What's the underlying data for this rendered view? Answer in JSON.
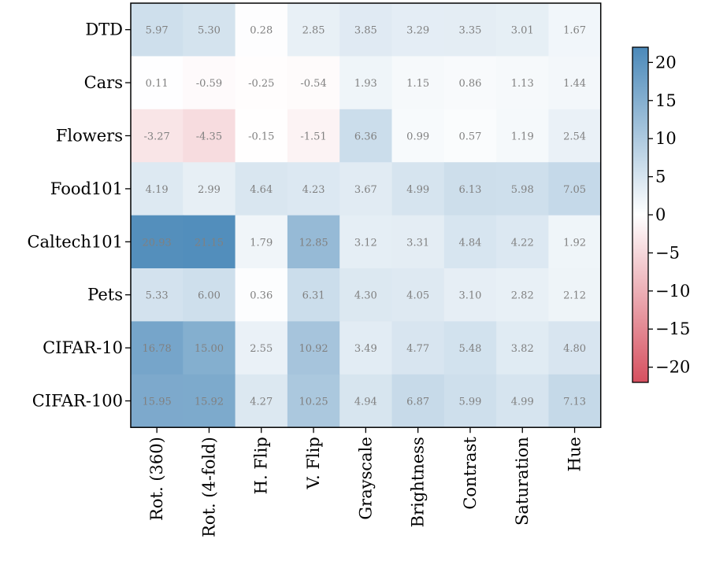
{
  "chart_data": {
    "type": "heatmap",
    "rows": [
      "DTD",
      "Cars",
      "Flowers",
      "Food101",
      "Caltech101",
      "Pets",
      "CIFAR-10",
      "CIFAR-100"
    ],
    "columns": [
      "Rot. (360)",
      "Rot. (4-fold)",
      "H. Flip",
      "V. Flip",
      "Grayscale",
      "Brightness",
      "Contrast",
      "Saturation",
      "Hue"
    ],
    "values": [
      [
        5.97,
        5.3,
        0.28,
        2.85,
        3.85,
        3.29,
        3.35,
        3.01,
        1.67
      ],
      [
        0.11,
        -0.59,
        -0.25,
        -0.54,
        1.93,
        1.15,
        0.86,
        1.13,
        1.44
      ],
      [
        -3.27,
        -4.35,
        -0.15,
        -1.51,
        6.36,
        0.99,
        0.57,
        1.19,
        2.54
      ],
      [
        4.19,
        2.99,
        4.64,
        4.23,
        3.67,
        4.99,
        6.13,
        5.98,
        7.05
      ],
      [
        20.93,
        21.15,
        1.79,
        12.85,
        3.12,
        3.31,
        4.84,
        4.22,
        1.92
      ],
      [
        5.33,
        6.0,
        0.36,
        6.31,
        4.3,
        4.05,
        3.1,
        2.82,
        2.12
      ],
      [
        16.78,
        15.0,
        2.55,
        10.92,
        3.49,
        4.77,
        5.48,
        3.82,
        4.8
      ],
      [
        15.95,
        15.92,
        4.27,
        10.25,
        4.94,
        6.87,
        5.99,
        4.99,
        7.13
      ]
    ],
    "cell_labels": [
      [
        "5.97",
        "5.30",
        "0.28",
        "2.85",
        "3.85",
        "3.29",
        "3.35",
        "3.01",
        "1.67"
      ],
      [
        "0.11",
        "-0.59",
        "-0.25",
        "-0.54",
        "1.93",
        "1.15",
        "0.86",
        "1.13",
        "1.44"
      ],
      [
        "-3.27",
        "-4.35",
        "-0.15",
        "-1.51",
        "6.36",
        "0.99",
        "0.57",
        "1.19",
        "2.54"
      ],
      [
        "4.19",
        "2.99",
        "4.64",
        "4.23",
        "3.67",
        "4.99",
        "6.13",
        "5.98",
        "7.05"
      ],
      [
        "20.93",
        "21.15",
        "1.79",
        "12.85",
        "3.12",
        "3.31",
        "4.84",
        "4.22",
        "1.92"
      ],
      [
        "5.33",
        "6.00",
        "0.36",
        "6.31",
        "4.30",
        "4.05",
        "3.10",
        "2.82",
        "2.12"
      ],
      [
        "16.78",
        "15.00",
        "2.55",
        "10.92",
        "3.49",
        "4.77",
        "5.48",
        "3.82",
        "4.80"
      ],
      [
        "15.95",
        "15.92",
        "4.27",
        "10.25",
        "4.94",
        "6.87",
        "5.99",
        "4.99",
        "7.13"
      ]
    ],
    "colorbar": {
      "range": [
        -22,
        22
      ],
      "ticks": [
        20,
        15,
        10,
        5,
        0,
        -5,
        -10,
        -15,
        -20
      ],
      "tick_labels": [
        "20",
        "15",
        "10",
        "5",
        "0",
        "−5",
        "−10",
        "−15",
        "−20"
      ],
      "colors": {
        "negative": "#d6505f",
        "zero": "#ffffff",
        "positive": "#4b89b9"
      },
      "position": "right"
    },
    "title": "",
    "xlabel": "",
    "ylabel": "",
    "grid": false
  }
}
